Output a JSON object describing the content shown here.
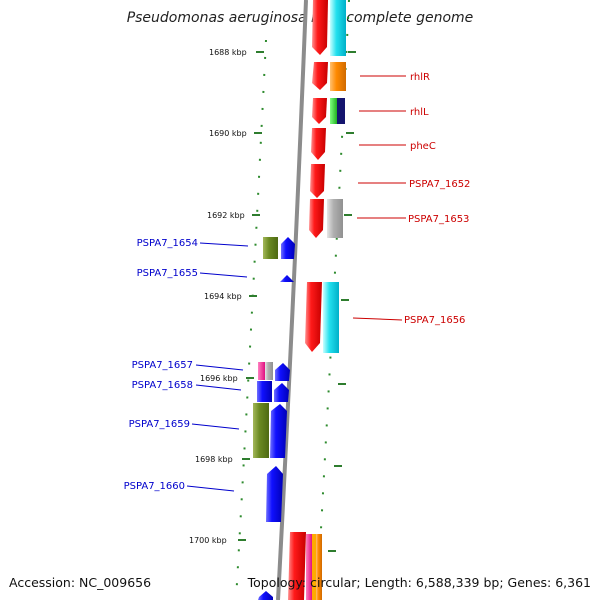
{
  "title": "Pseudomonas aeruginosa PA7, complete genome",
  "footer": {
    "accession": "Accession: NC_009656",
    "summary": "Topology: circular; Length: 6,588,339 bp; Genes: 6,361"
  },
  "colors": {
    "backbone": "#888888",
    "tick": "#2e7d2e",
    "plus_label": "#cc0000",
    "minus_label": "#0000cc",
    "plus_gene": "#ff0000",
    "minus_gene": "#0000ff"
  },
  "ticks": [
    "1688 kbp",
    "1690 kbp",
    "1692 kbp",
    "1694 kbp",
    "1696 kbp",
    "1698 kbp",
    "1700 kbp"
  ],
  "genes_plus": [
    {
      "label": "rhlR"
    },
    {
      "label": "rhlL"
    },
    {
      "label": "pheC"
    },
    {
      "label": "PSPA7_1652"
    },
    {
      "label": "PSPA7_1653"
    },
    {
      "label": "PSPA7_1656"
    }
  ],
  "genes_minus": [
    {
      "label": "PSPA7_1654"
    },
    {
      "label": "PSPA7_1655"
    },
    {
      "label": "PSPA7_1657"
    },
    {
      "label": "PSPA7_1658"
    },
    {
      "label": "PSPA7_1659"
    },
    {
      "label": "PSPA7_1660"
    }
  ]
}
